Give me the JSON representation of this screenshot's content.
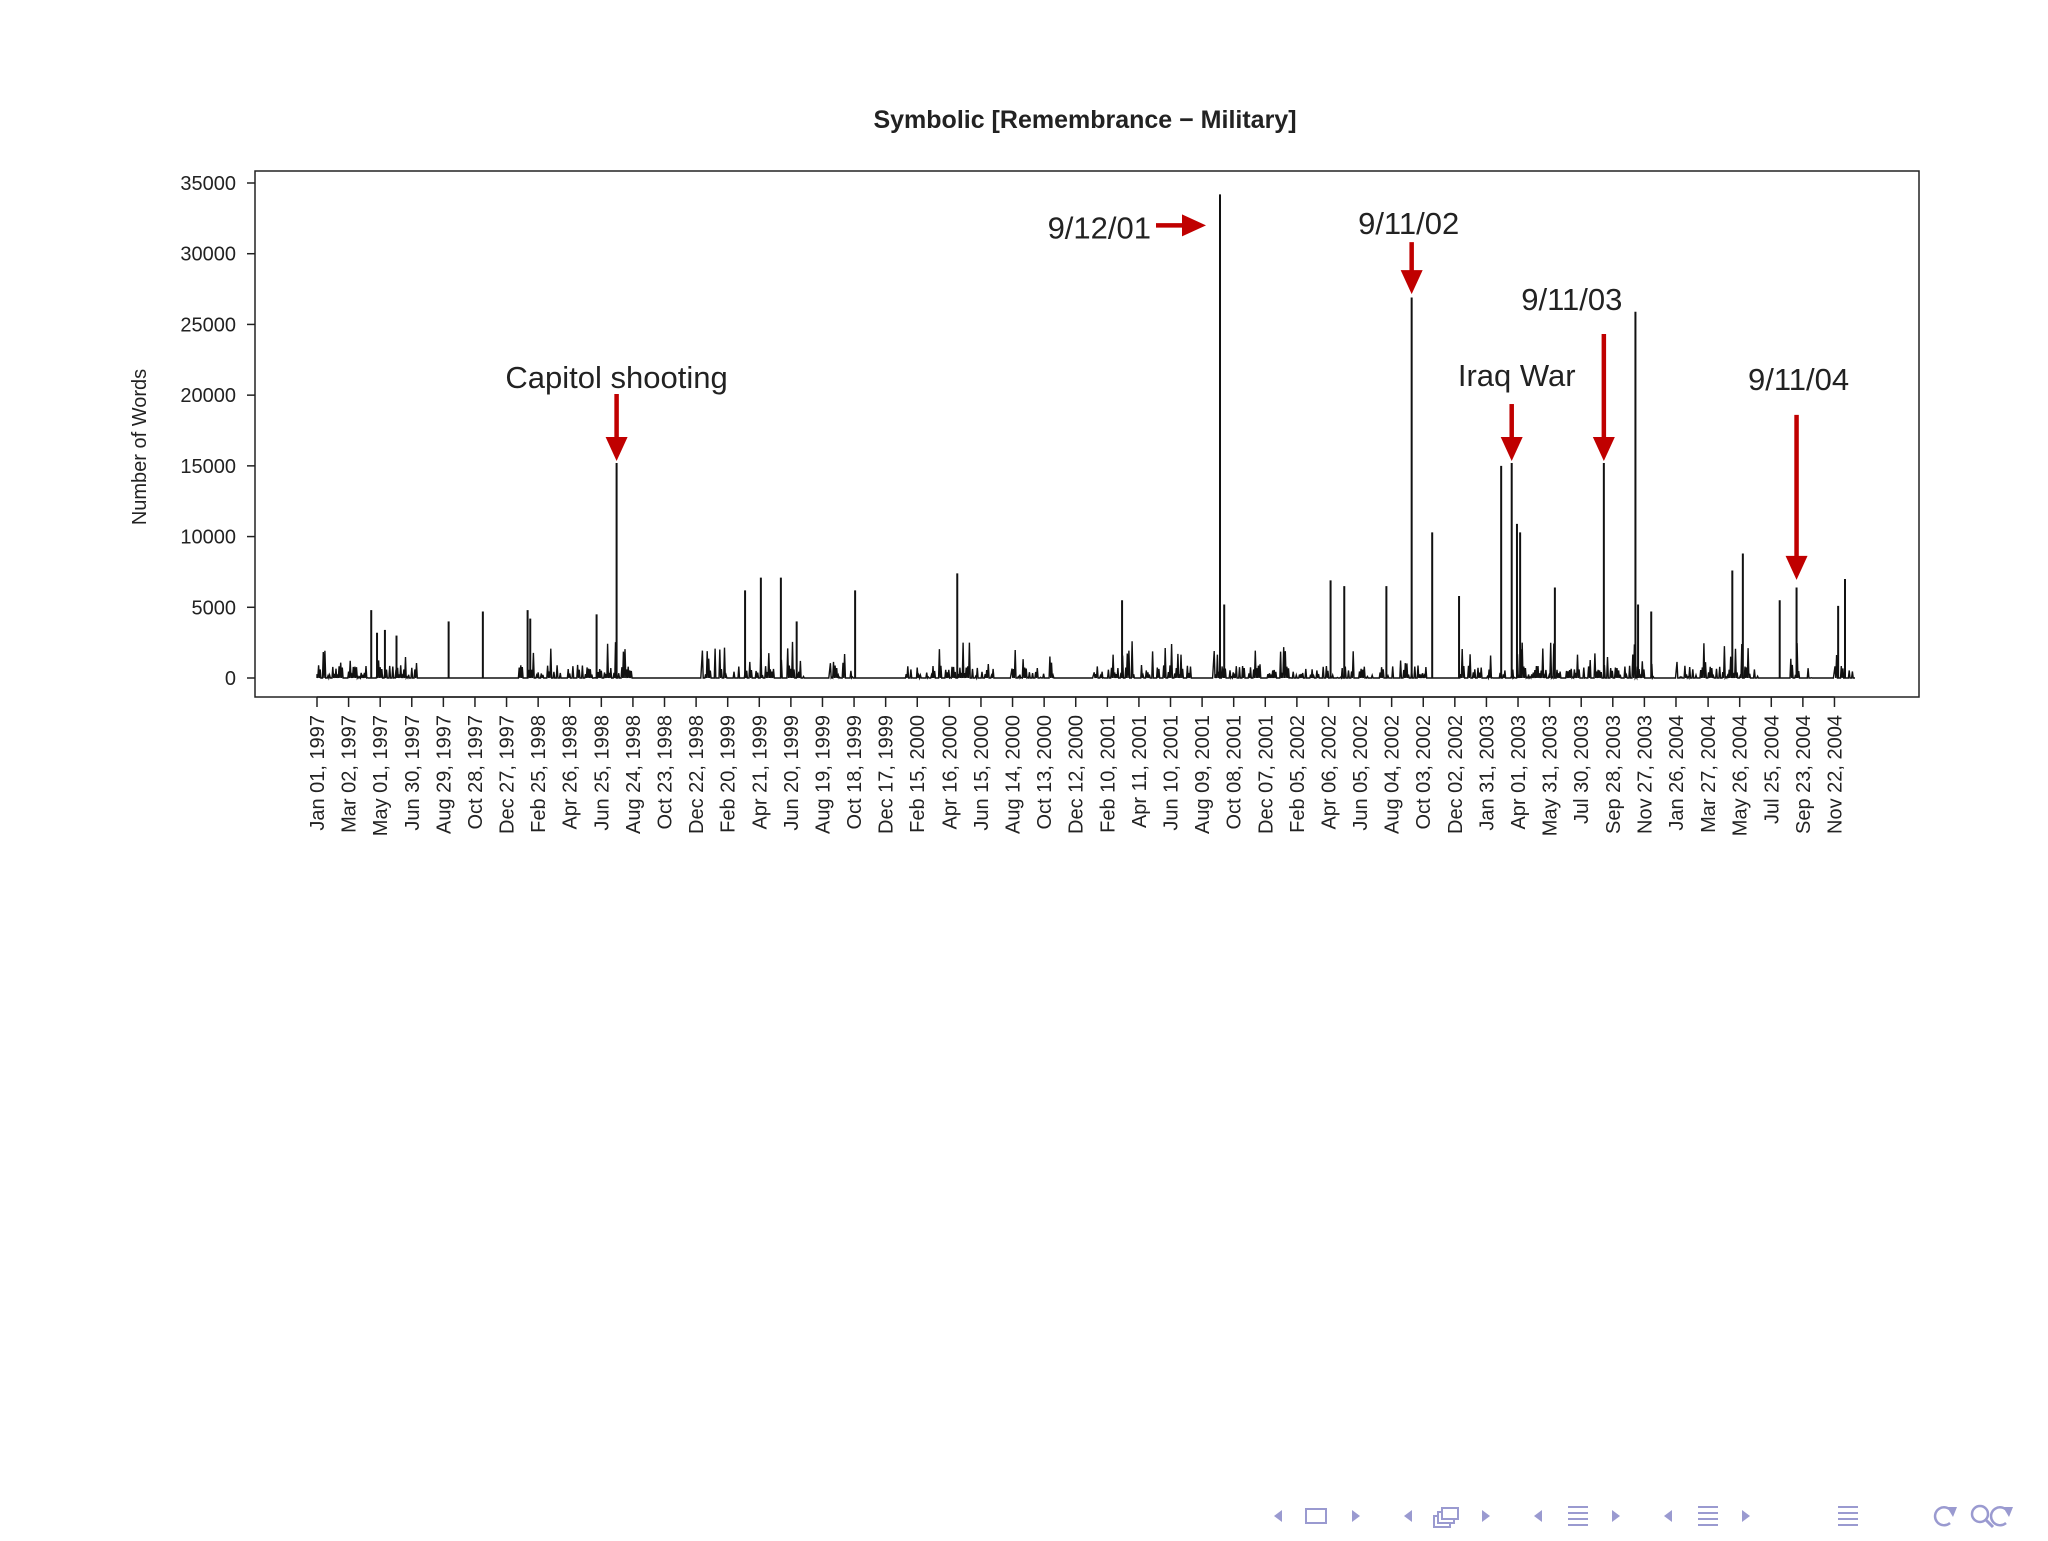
{
  "chart_data": {
    "type": "line",
    "title": "Symbolic [Remembrance − Military]",
    "xlabel": "",
    "ylabel": "Number of Words",
    "ylim": [
      0,
      35000
    ],
    "yticks": [
      0,
      5000,
      10000,
      15000,
      20000,
      25000,
      30000,
      35000
    ],
    "x_start": "Jan 01, 1997",
    "x_end": "Dec 31, 2004",
    "xtick_labels": [
      "Jan 01, 1997",
      "Mar 02, 1997",
      "May 01, 1997",
      "Jun 30, 1997",
      "Aug 29, 1997",
      "Oct 28, 1997",
      "Dec 27, 1997",
      "Feb 25, 1998",
      "Apr 26, 1998",
      "Jun 25, 1998",
      "Aug 24, 1998",
      "Oct 23, 1998",
      "Dec 22, 1998",
      "Feb 20, 1999",
      "Apr 21, 1999",
      "Jun 20, 1999",
      "Aug 19, 1999",
      "Oct 18, 1999",
      "Dec 17, 1999",
      "Feb 15, 2000",
      "Apr 16, 2000",
      "Jun 15, 2000",
      "Aug 14, 2000",
      "Oct 13, 2000",
      "Dec 12, 2000",
      "Feb 10, 2001",
      "Apr 11, 2001",
      "Jun 10, 2001",
      "Aug 09, 2001",
      "Oct 08, 2001",
      "Dec 07, 2001",
      "Feb 05, 2002",
      "Apr 06, 2002",
      "Jun 05, 2002",
      "Aug 04, 2002",
      "Oct 03, 2002",
      "Dec 02, 2002",
      "Jan 31, 2003",
      "Apr 01, 2003",
      "May 31, 2003",
      "Jul 30, 2003",
      "Sep 28, 2003",
      "Nov 27, 2003",
      "Jan 26, 2004",
      "Mar 27, 2004",
      "May 26, 2004",
      "Jul 25, 2004",
      "Sep 23, 2004",
      "Nov 22, 2004"
    ],
    "series": [
      {
        "name": "Number of Words",
        "spikes": [
          {
            "date": "Apr 14, 1997",
            "value": 4800
          },
          {
            "date": "Apr 25, 1997",
            "value": 3200
          },
          {
            "date": "May 10, 1997",
            "value": 3400
          },
          {
            "date": "Jun 01, 1997",
            "value": 3000
          },
          {
            "date": "Sep 08, 1997",
            "value": 4000
          },
          {
            "date": "Nov 12, 1997",
            "value": 4700
          },
          {
            "date": "Feb 05, 1998",
            "value": 4800
          },
          {
            "date": "Feb 10, 1998",
            "value": 4200
          },
          {
            "date": "Jun 16, 1998",
            "value": 4500
          },
          {
            "date": "Jul 24, 1998",
            "value": 15200
          },
          {
            "date": "Mar 25, 1999",
            "value": 6200
          },
          {
            "date": "Apr 24, 1999",
            "value": 7100
          },
          {
            "date": "Jun 01, 1999",
            "value": 7100
          },
          {
            "date": "Jul 01, 1999",
            "value": 4000
          },
          {
            "date": "Oct 20, 1999",
            "value": 6200
          },
          {
            "date": "May 01, 2000",
            "value": 7400
          },
          {
            "date": "Mar 10, 2001",
            "value": 5500
          },
          {
            "date": "Sep 12, 2001",
            "value": 34200
          },
          {
            "date": "Sep 20, 2001",
            "value": 5200
          },
          {
            "date": "Apr 10, 2002",
            "value": 6900
          },
          {
            "date": "May 06, 2002",
            "value": 6500
          },
          {
            "date": "Jul 25, 2002",
            "value": 6500
          },
          {
            "date": "Sep 11, 2002",
            "value": 26900
          },
          {
            "date": "Oct 20, 2002",
            "value": 10300
          },
          {
            "date": "Dec 10, 2002",
            "value": 5800
          },
          {
            "date": "Feb 28, 2003",
            "value": 15000
          },
          {
            "date": "Mar 20, 2003",
            "value": 15200
          },
          {
            "date": "Mar 30, 2003",
            "value": 10900
          },
          {
            "date": "Apr 05, 2003",
            "value": 10300
          },
          {
            "date": "Jun 10, 2003",
            "value": 6400
          },
          {
            "date": "Sep 11, 2003",
            "value": 15200
          },
          {
            "date": "Nov 10, 2003",
            "value": 25900
          },
          {
            "date": "Nov 15, 2003",
            "value": 5200
          },
          {
            "date": "Dec 10, 2003",
            "value": 4700
          },
          {
            "date": "May 12, 2004",
            "value": 7600
          },
          {
            "date": "Jun 01, 2004",
            "value": 8800
          },
          {
            "date": "Aug 10, 2004",
            "value": 5500
          },
          {
            "date": "Sep 11, 2004",
            "value": 6400
          },
          {
            "date": "Nov 29, 2004",
            "value": 5100
          },
          {
            "date": "Dec 12, 2004",
            "value": 7000
          }
        ],
        "gaps": [
          [
            "Jul 15, 1997",
            "Jan 15, 1998"
          ],
          [
            "Aug 25, 1998",
            "Jan 01, 1999"
          ],
          [
            "Jul 20, 1999",
            "Sep 01, 1999"
          ],
          [
            "Nov 01, 1999",
            "Jan 20, 2000"
          ],
          [
            "Jul 10, 2000",
            "Aug 10, 2000"
          ],
          [
            "Nov 01, 2000",
            "Jan 15, 2001"
          ],
          [
            "Jul 20, 2001",
            "Aug 31, 2001"
          ],
          [
            "Oct 10, 2002",
            "Dec 01, 2002"
          ],
          [
            "Dec 15, 2003",
            "Jan 25, 2004"
          ],
          [
            "Jul 01, 2004",
            "Aug 25, 2004"
          ],
          [
            "Oct 10, 2004",
            "Nov 20, 2004"
          ]
        ]
      }
    ],
    "annotations": [
      {
        "label": "Capitol shooting",
        "date": "Jul 24, 1998",
        "value": 15200,
        "arrow": "down"
      },
      {
        "label": "9/12/01",
        "date": "Sep 12, 2001",
        "value": 32000,
        "arrow": "right"
      },
      {
        "label": "9/11/02",
        "date": "Sep 11, 2002",
        "value": 27000,
        "arrow": "down"
      },
      {
        "label": "9/11/03",
        "date": "Sep 11, 2003",
        "value": 15200,
        "arrow": "down"
      },
      {
        "label": "Iraq War",
        "date": "Mar 20, 2003",
        "value": 15200,
        "arrow": "down"
      },
      {
        "label": "9/11/04",
        "date": "Sep 11, 2004",
        "value": 6800,
        "arrow": "down"
      }
    ],
    "colors": {
      "line": "#111111",
      "arrow": "#c00000",
      "axis": "#222222"
    }
  },
  "nav_icons": [
    "arrow-left-icon",
    "frame-icon",
    "arrow-right-icon",
    "arrow-left-icon",
    "subsection-icon",
    "arrow-right-icon",
    "arrow-left-icon",
    "section-icon",
    "arrow-right-icon",
    "arrow-left-icon",
    "outline-icon",
    "arrow-right-icon",
    "align-icon",
    "loop-icon",
    "search-icon",
    "undo-icon"
  ],
  "nav_color": "#9a9ad0"
}
